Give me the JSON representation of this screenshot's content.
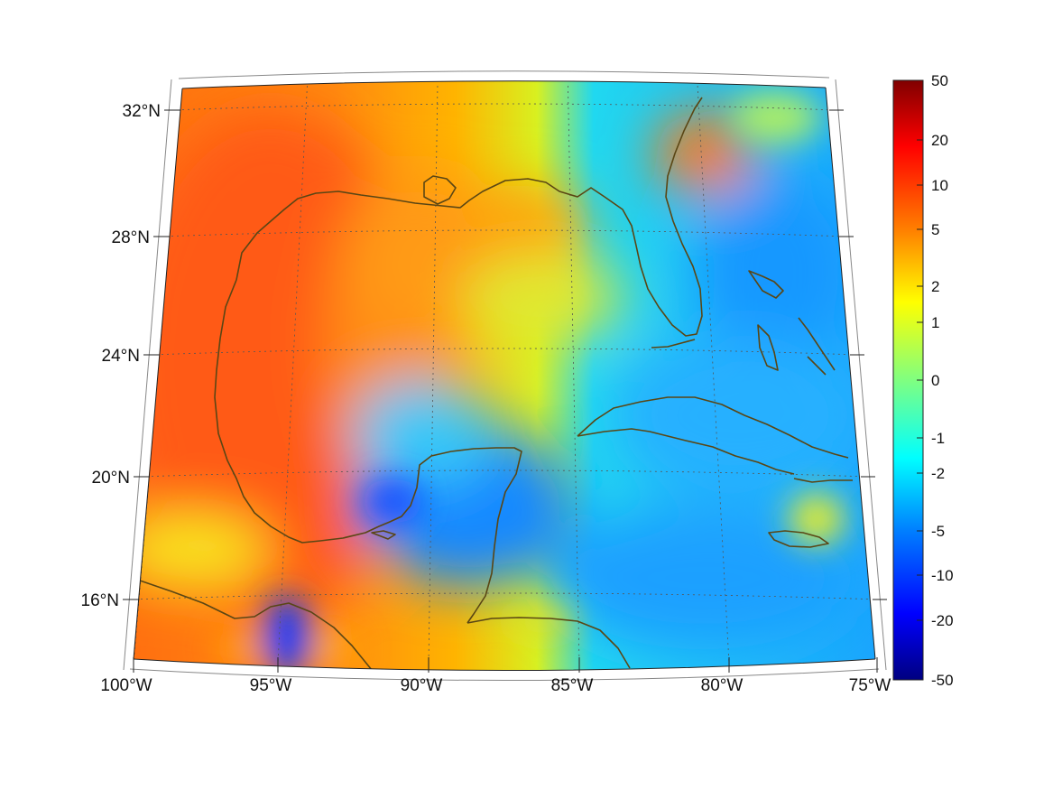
{
  "map": {
    "projection": "conic",
    "lat_ticks": [
      {
        "value": 32,
        "label": "32°N"
      },
      {
        "value": 28,
        "label": "28°N"
      },
      {
        "value": 24,
        "label": "24°N"
      },
      {
        "value": 20,
        "label": "20°N"
      },
      {
        "value": 16,
        "label": "16°N"
      }
    ],
    "lon_ticks": [
      {
        "value": -100,
        "label": "100°W"
      },
      {
        "value": -95,
        "label": "95°W"
      },
      {
        "value": -90,
        "label": "90°W"
      },
      {
        "value": -85,
        "label": "85°W"
      },
      {
        "value": -80,
        "label": "80°W"
      },
      {
        "value": -75,
        "label": "75°W"
      }
    ],
    "lon_range": [
      -100,
      -75
    ],
    "lat_range": [
      14,
      33
    ],
    "grid": true,
    "coastline_color": "#5a4614"
  },
  "colorbar": {
    "colormap": "jet",
    "tick_labels": [
      "50",
      "20",
      "10",
      "5",
      "2",
      "1",
      "0",
      "-1",
      "-2",
      "-5",
      "-10",
      "-20",
      "-50"
    ],
    "scale": "symmetric-log"
  },
  "field_regions": [
    {
      "region": "Texas / western Gulf",
      "level": "high",
      "value_range": "5 to 10"
    },
    {
      "region": "Bay of Campeche / Veracruz",
      "level": "high",
      "value_range": "5 to 10"
    },
    {
      "region": "central Gulf",
      "level": "moderate",
      "value_range": "2 to 5"
    },
    {
      "region": "NE Gulf / Florida panhandle",
      "level": "moderate",
      "value_range": "2 to 5"
    },
    {
      "region": "SE Georgia / N Florida",
      "level": "moderate",
      "value_range": "2 to 10"
    },
    {
      "region": "Yucatan / Caribbean",
      "level": "negative",
      "value_range": "-2 to -5"
    },
    {
      "region": "Gulf of Tehuantepec",
      "level": "strong negative",
      "value_range": "-10 to -20"
    },
    {
      "region": "Jamaica",
      "level": "slight positive",
      "value_range": "1 to 2"
    }
  ]
}
